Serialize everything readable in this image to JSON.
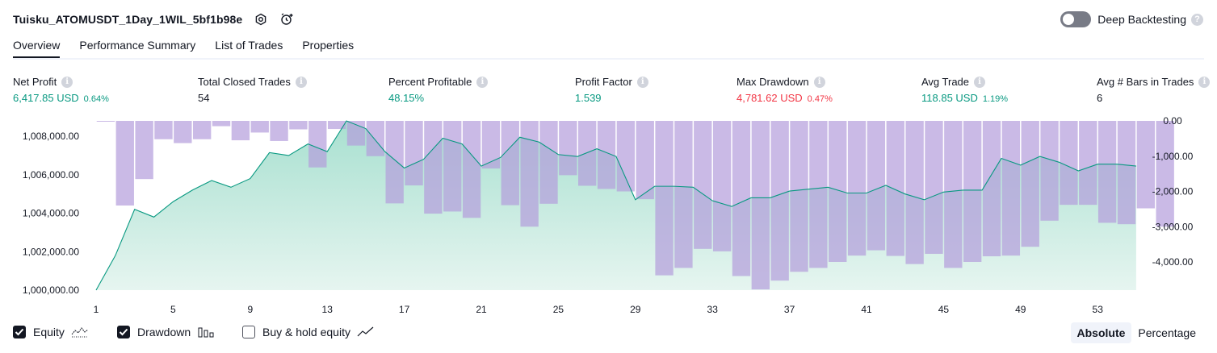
{
  "header": {
    "title": "Tuisku_ATOMUSDT_1Day_1WIL_5bf1b98e",
    "deep_backtesting_label": "Deep Backtesting"
  },
  "tabs": [
    {
      "label": "Overview",
      "active": true
    },
    {
      "label": "Performance Summary",
      "active": false
    },
    {
      "label": "List of Trades",
      "active": false
    },
    {
      "label": "Properties",
      "active": false
    }
  ],
  "metrics": [
    {
      "label": "Net Profit",
      "value": "6,417.85 USD",
      "pct": "0.64%",
      "color": "#089981"
    },
    {
      "label": "Total Closed Trades",
      "value": "54",
      "pct": "",
      "color": "#131722"
    },
    {
      "label": "Percent Profitable",
      "value": "48.15%",
      "pct": "",
      "color": "#089981"
    },
    {
      "label": "Profit Factor",
      "value": "1.539",
      "pct": "",
      "color": "#089981"
    },
    {
      "label": "Max Drawdown",
      "value": "4,781.62 USD",
      "pct": "0.47%",
      "color": "#f23645"
    },
    {
      "label": "Avg Trade",
      "value": "118.85 USD",
      "pct": "1.19%",
      "color": "#089981"
    },
    {
      "label": "Avg # Bars in Trades",
      "value": "6",
      "pct": "",
      "color": "#131722"
    }
  ],
  "chart_data": {
    "type": "area",
    "equity": {
      "x": [
        1,
        2,
        3,
        4,
        5,
        6,
        7,
        8,
        9,
        10,
        11,
        12,
        13,
        14,
        15,
        16,
        17,
        18,
        19,
        20,
        21,
        22,
        23,
        24,
        25,
        26,
        27,
        28,
        29,
        30,
        31,
        32,
        33,
        34,
        35,
        36,
        37,
        38,
        39,
        40,
        41,
        42,
        43,
        44,
        45,
        46,
        47,
        48,
        49,
        50,
        51,
        52,
        53,
        54,
        55
      ],
      "values": [
        1000000,
        1001800,
        1004200,
        1003800,
        1004600,
        1005200,
        1005700,
        1005350,
        1005800,
        1007150,
        1007000,
        1007600,
        1007200,
        1008800,
        1008400,
        1007200,
        1006350,
        1006800,
        1007900,
        1007600,
        1006450,
        1006900,
        1007950,
        1007700,
        1007050,
        1006950,
        1007350,
        1006950,
        1004700,
        1005400,
        1005400,
        1005350,
        1004650,
        1004350,
        1004800,
        1004800,
        1005150,
        1005250,
        1005350,
        1005050,
        1005050,
        1005450,
        1005000,
        1004700,
        1005100,
        1005200,
        1005200,
        1006850,
        1006500,
        1006950,
        1006650,
        1006200,
        1006550,
        1006550,
        1006450
      ],
      "color": "#089981"
    },
    "drawdown": {
      "x": [
        1,
        2,
        3,
        4,
        5,
        6,
        7,
        8,
        9,
        10,
        11,
        12,
        13,
        14,
        15,
        16,
        17,
        18,
        19,
        20,
        21,
        22,
        23,
        24,
        25,
        26,
        27,
        28,
        29,
        30,
        31,
        32,
        33,
        34,
        35,
        36,
        37,
        38,
        39,
        40,
        41,
        42,
        43,
        44,
        45,
        46,
        47,
        48,
        49,
        50,
        51,
        52,
        53,
        54,
        55,
        56
      ],
      "values": [
        -20,
        -2400,
        -1650,
        -520,
        -630,
        -520,
        -150,
        -550,
        -330,
        -570,
        -240,
        -1320,
        -230,
        -700,
        -1000,
        -2340,
        -1830,
        -2630,
        -2570,
        -2750,
        -1350,
        -2390,
        -3000,
        -2350,
        -1540,
        -1840,
        -1930,
        -2000,
        -2220,
        -4380,
        -4170,
        -3630,
        -3700,
        -4400,
        -4780,
        -4530,
        -4280,
        -4170,
        -4000,
        -3820,
        -3670,
        -3830,
        -4060,
        -3770,
        -4170,
        -4000,
        -3840,
        -3820,
        -3570,
        -2830,
        -2380,
        -2380,
        -2890,
        -2930,
        -2480,
        -3000
      ],
      "color": "#b39ddb"
    },
    "left_axis": {
      "ticks": [
        "1,008,000.00",
        "1,006,000.00",
        "1,004,000.00",
        "1,002,000.00",
        "1,000,000.00"
      ],
      "min": 1000000,
      "max": 1008800
    },
    "right_axis": {
      "ticks": [
        "0.00",
        "-1,000.00",
        "-2,000.00",
        "-3,000.00",
        "-4,000.00"
      ],
      "min": -4800,
      "max": 0
    },
    "x_ticks": [
      "1",
      "5",
      "9",
      "13",
      "17",
      "21",
      "25",
      "29",
      "33",
      "37",
      "41",
      "45",
      "49",
      "53"
    ]
  },
  "legend": [
    {
      "label": "Equity",
      "checked": true,
      "icon": "equity-icon"
    },
    {
      "label": "Drawdown",
      "checked": true,
      "icon": "drawdown-icon"
    },
    {
      "label": "Buy & hold equity",
      "checked": false,
      "icon": "buy-hold-icon"
    }
  ],
  "view_toggle": {
    "absolute": "Absolute",
    "percentage": "Percentage",
    "selected": "Absolute"
  }
}
